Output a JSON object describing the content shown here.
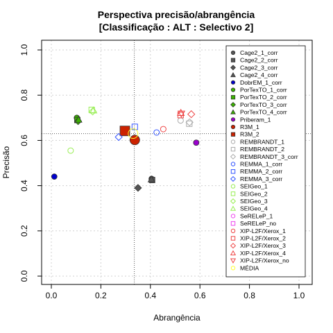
{
  "chart_data": {
    "type": "scatter",
    "title": "Perspectiva precisão/abrangência",
    "subtitle": "[Classificação : ALT : Selectivo 2]",
    "xlabel": "Abrangência",
    "ylabel": "Precisão",
    "xlim": [
      0,
      1
    ],
    "ylim": [
      0,
      1
    ],
    "xticks": [
      "0.0",
      "0.2",
      "0.4",
      "0.6",
      "0.8",
      "1.0"
    ],
    "yticks": [
      "0.0",
      "0.2",
      "0.4",
      "0.6",
      "0.8",
      "1.0"
    ],
    "grid": true,
    "reference_lines": {
      "x": 0.335,
      "y": 0.63
    },
    "legend_position": "right",
    "series": [
      {
        "name": "Cage2_1_corr",
        "marker": "circle",
        "color": "#555555",
        "filled": true,
        "points": [
          [
            0.405,
            0.43
          ]
        ]
      },
      {
        "name": "Cage2_2_corr",
        "marker": "square",
        "color": "#555555",
        "filled": true,
        "points": [
          [
            0.407,
            0.425
          ]
        ]
      },
      {
        "name": "Cage2_3_corr",
        "marker": "diamond",
        "color": "#555555",
        "filled": true,
        "points": [
          [
            0.35,
            0.39
          ]
        ]
      },
      {
        "name": "Cage2_4_corr",
        "marker": "triangle",
        "color": "#555555",
        "filled": true,
        "points": [
          [
            0.404,
            0.428
          ]
        ]
      },
      {
        "name": "DobrEM_1_corr",
        "marker": "circle",
        "color": "#0000cc",
        "filled": true,
        "points": [
          [
            0.012,
            0.44
          ]
        ]
      },
      {
        "name": "PorTexTO_1_corr",
        "marker": "circle",
        "color": "#3bb300",
        "filled": true,
        "points": [
          [
            0.103,
            0.7
          ]
        ]
      },
      {
        "name": "PorTexTO_2_corr",
        "marker": "square",
        "color": "#3bb300",
        "filled": true,
        "points": [
          [
            0.105,
            0.69
          ]
        ]
      },
      {
        "name": "PorTexTO_3_corr",
        "marker": "diamond",
        "color": "#3bb300",
        "filled": true,
        "points": [
          [
            0.108,
            0.685
          ]
        ]
      },
      {
        "name": "PorTexTO_4_corr",
        "marker": "triangle",
        "color": "#3bb300",
        "filled": true,
        "points": [
          [
            0.11,
            0.692
          ]
        ]
      },
      {
        "name": "Priberam_1",
        "marker": "circle",
        "color": "#9900cc",
        "filled": true,
        "points": [
          [
            0.585,
            0.59
          ]
        ]
      },
      {
        "name": "R3M_1",
        "marker": "circle",
        "color": "#cc2200",
        "filled": true,
        "points": [
          [
            0.337,
            0.602
          ]
        ]
      },
      {
        "name": "R3M_2",
        "marker": "square",
        "color": "#cc2200",
        "filled": true,
        "points": [
          [
            0.297,
            0.642
          ]
        ]
      },
      {
        "name": "REMBRANDT_1",
        "marker": "circle",
        "color": "#aaaaaa",
        "filled": false,
        "points": [
          [
            0.522,
            0.688
          ]
        ]
      },
      {
        "name": "REMBRANDT_2",
        "marker": "square",
        "color": "#aaaaaa",
        "filled": false,
        "points": [
          [
            0.557,
            0.674
          ]
        ]
      },
      {
        "name": "REMBRANDT_3_corr",
        "marker": "diamond",
        "color": "#aaaaaa",
        "filled": false,
        "points": [
          [
            0.558,
            0.68
          ]
        ]
      },
      {
        "name": "REMMA_1_corr",
        "marker": "circle",
        "color": "#3355ff",
        "filled": false,
        "points": [
          [
            0.425,
            0.635
          ]
        ]
      },
      {
        "name": "REMMA_2_corr",
        "marker": "square",
        "color": "#3355ff",
        "filled": false,
        "points": [
          [
            0.337,
            0.66
          ]
        ]
      },
      {
        "name": "REMMA_3_corr",
        "marker": "diamond",
        "color": "#3355ff",
        "filled": false,
        "points": [
          [
            0.272,
            0.615
          ]
        ]
      },
      {
        "name": "SEIGeo_1",
        "marker": "circle",
        "color": "#99ee55",
        "filled": false,
        "points": [
          [
            0.078,
            0.555
          ]
        ]
      },
      {
        "name": "SEIGeo_2",
        "marker": "square",
        "color": "#99ee55",
        "filled": false,
        "points": [
          [
            0.163,
            0.735
          ]
        ]
      },
      {
        "name": "SEIGeo_3",
        "marker": "diamond",
        "color": "#99ee55",
        "filled": false,
        "points": [
          [
            0.167,
            0.728
          ]
        ]
      },
      {
        "name": "SEIGeo_4",
        "marker": "triangle",
        "color": "#99ee55",
        "filled": false,
        "points": [
          [
            0.17,
            0.733
          ]
        ]
      },
      {
        "name": "SeRELeP_1",
        "marker": "circle",
        "color": "#ee44ee",
        "filled": false,
        "points": []
      },
      {
        "name": "SeRELeP_no",
        "marker": "square",
        "color": "#ee44ee",
        "filled": false,
        "points": []
      },
      {
        "name": "XIP-L2F/Xerox_1",
        "marker": "circle",
        "color": "#ee4444",
        "filled": false,
        "points": [
          [
            0.452,
            0.65
          ]
        ]
      },
      {
        "name": "XIP-L2F/Xerox_2",
        "marker": "square",
        "color": "#ee4444",
        "filled": false,
        "points": [
          [
            0.522,
            0.712
          ]
        ]
      },
      {
        "name": "XIP-L2F/Xerox_3",
        "marker": "diamond",
        "color": "#ee4444",
        "filled": false,
        "points": [
          [
            0.565,
            0.716
          ]
        ]
      },
      {
        "name": "XIP-L2F/Xerox_4",
        "marker": "triangle",
        "color": "#ee4444",
        "filled": false,
        "points": [
          [
            0.523,
            0.722
          ]
        ]
      },
      {
        "name": "XIP-L2F/Xerox_no",
        "marker": "triangle-down",
        "color": "#ee4444",
        "filled": false,
        "points": [
          [
            0.525,
            0.718
          ]
        ]
      },
      {
        "name": "MÉDIA",
        "marker": "circle",
        "color": "#ffff33",
        "filled": false,
        "points": [
          [
            0.33,
            0.63
          ]
        ]
      }
    ]
  }
}
